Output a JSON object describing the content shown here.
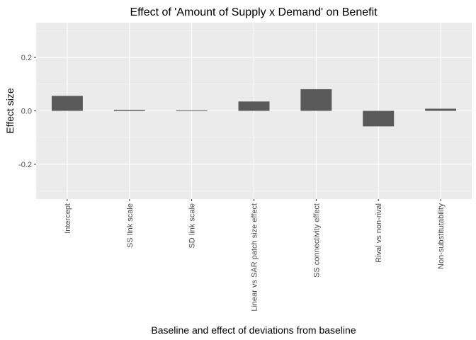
{
  "chart_data": {
    "type": "bar",
    "title": "Effect of 'Amount of Supply x Demand' on Benefit",
    "xlabel": "Baseline and effect of deviations from baseline",
    "ylabel": "Effect size",
    "categories": [
      "Intercept",
      "SS link scale",
      "SD link scale",
      "Linear vs SAR patch size effect",
      "SS connectivity effect",
      "Rival vs non-rival",
      "Non-substitutability"
    ],
    "values": [
      0.056,
      0.004,
      0.002,
      0.035,
      0.081,
      -0.058,
      0.008
    ],
    "ylim": [
      -0.33,
      0.33
    ],
    "yticks": [
      -0.2,
      0.0,
      0.2
    ],
    "ytick_labels": [
      "-0.2",
      "0.0",
      "0.2"
    ],
    "grid": true,
    "colors": {
      "panel": "#ebebeb",
      "grid_major": "#ffffff",
      "bar": "#595959",
      "tick": "#333333"
    }
  }
}
